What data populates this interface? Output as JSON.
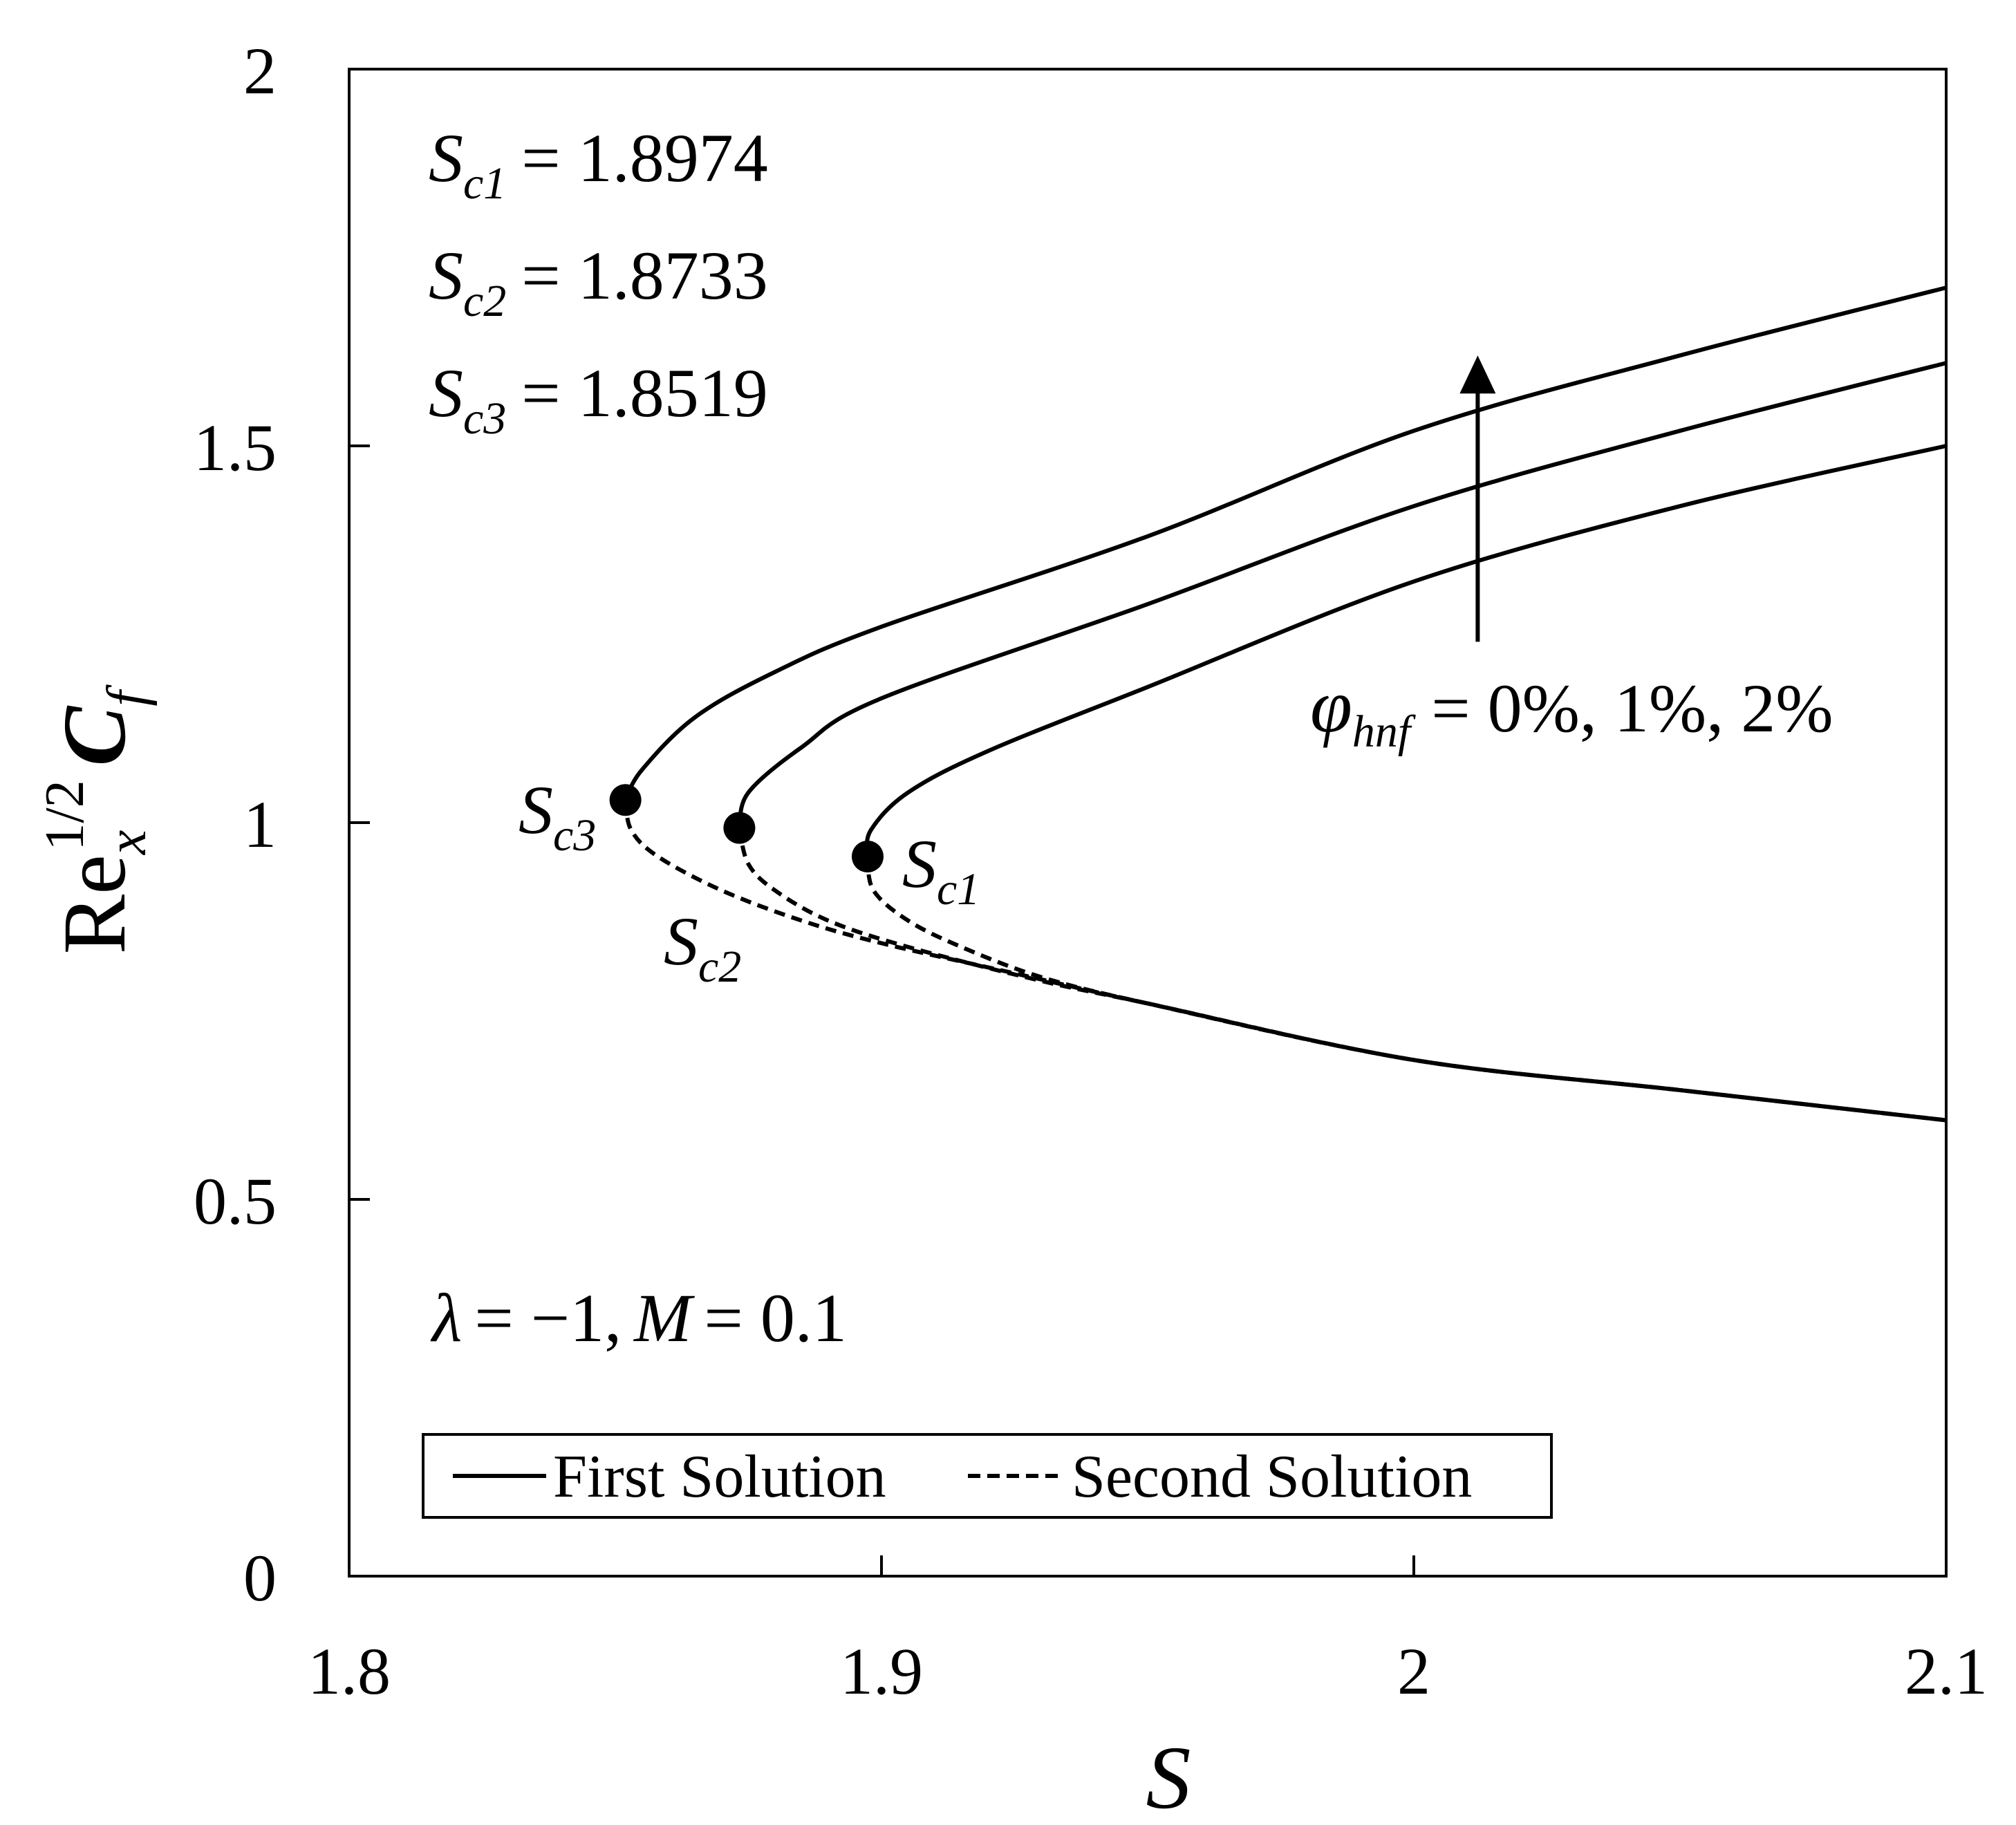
{
  "chart_data": {
    "type": "line",
    "xlabel": "S",
    "ylabel": {
      "base": "Re",
      "sub": "x",
      "sup": "1/2",
      "tail": "C",
      "tail_sub": "f"
    },
    "xlim": [
      1.8,
      2.1
    ],
    "ylim": [
      0,
      2
    ],
    "x_ticks": [
      1.8,
      1.9,
      2.0,
      2.1
    ],
    "x_tick_labels": [
      "1.8",
      "1.9",
      "2",
      "2.1"
    ],
    "y_ticks": [
      0,
      0.5,
      1.0,
      1.5,
      2.0
    ],
    "y_tick_labels": [
      "0",
      "0.5",
      "1",
      "1.5",
      "2"
    ],
    "grid": false,
    "legend": {
      "placement": "bottom-left",
      "entries": [
        {
          "label": "First Solution",
          "style": "solid"
        },
        {
          "label": "Second Solution",
          "style": "dashed"
        }
      ]
    },
    "critical_values": [
      {
        "sym": "S",
        "sub": "c1",
        "text": "= 1.8974"
      },
      {
        "sym": "S",
        "sub": "c2",
        "text": "= 1.8733"
      },
      {
        "sym": "S",
        "sub": "c3",
        "text": "= 1.8519"
      }
    ],
    "param_annotation": {
      "lambda": "λ",
      "lambda_value": "= −1,",
      "M": "M",
      "M_value": "= 0.1"
    },
    "phi_annotation": {
      "sym": "φ",
      "sub": "hnf",
      "text": "= 0%, 1%, 2%"
    },
    "point_labels": [
      {
        "sym": "S",
        "sub": "c1"
      },
      {
        "sym": "S",
        "sub": "c2"
      },
      {
        "sym": "S",
        "sub": "c3"
      }
    ],
    "arrow": {
      "x": 2.012,
      "y_from": 1.24,
      "y_to": 1.62
    },
    "curves": [
      {
        "critical_point": [
          1.8974,
          0.955
        ],
        "first": [
          [
            1.8974,
            0.955
          ],
          [
            1.898,
            0.99
          ],
          [
            1.905,
            1.04
          ],
          [
            1.92,
            1.095
          ],
          [
            1.95,
            1.18
          ],
          [
            2.0,
            1.32
          ],
          [
            2.05,
            1.42
          ],
          [
            2.1,
            1.5
          ]
        ],
        "second": [
          [
            1.8974,
            0.955
          ],
          [
            1.8985,
            0.91
          ],
          [
            1.905,
            0.87
          ],
          [
            1.915,
            0.835
          ],
          [
            1.93,
            0.795
          ],
          [
            1.95,
            0.76
          ],
          [
            2.0,
            0.685
          ],
          [
            2.05,
            0.645
          ],
          [
            2.1,
            0.605
          ]
        ]
      },
      {
        "critical_point": [
          1.8733,
          0.993
        ],
        "first": [
          [
            1.8733,
            0.993
          ],
          [
            1.875,
            1.04
          ],
          [
            1.885,
            1.1
          ],
          [
            1.9,
            1.165
          ],
          [
            1.95,
            1.29
          ],
          [
            2.0,
            1.42
          ],
          [
            2.05,
            1.52
          ],
          [
            2.1,
            1.61
          ]
        ],
        "second": [
          [
            1.8733,
            0.993
          ],
          [
            1.875,
            0.945
          ],
          [
            1.88,
            0.91
          ],
          [
            1.89,
            0.87
          ],
          [
            1.905,
            0.835
          ],
          [
            1.93,
            0.79
          ],
          [
            1.95,
            0.76
          ],
          [
            2.0,
            0.685
          ],
          [
            2.05,
            0.645
          ],
          [
            2.1,
            0.605
          ]
        ]
      },
      {
        "critical_point": [
          1.8519,
          1.03
        ],
        "first": [
          [
            1.8519,
            1.03
          ],
          [
            1.855,
            1.07
          ],
          [
            1.865,
            1.14
          ],
          [
            1.88,
            1.2
          ],
          [
            1.9,
            1.26
          ],
          [
            1.95,
            1.38
          ],
          [
            2.0,
            1.52
          ],
          [
            2.05,
            1.62
          ],
          [
            2.1,
            1.71
          ]
        ],
        "second": [
          [
            1.8519,
            1.03
          ],
          [
            1.853,
            0.99
          ],
          [
            1.858,
            0.955
          ],
          [
            1.87,
            0.91
          ],
          [
            1.885,
            0.87
          ],
          [
            1.9,
            0.84
          ],
          [
            1.925,
            0.8
          ],
          [
            1.95,
            0.76
          ],
          [
            2.0,
            0.685
          ],
          [
            2.05,
            0.645
          ],
          [
            2.1,
            0.605
          ]
        ]
      }
    ]
  }
}
